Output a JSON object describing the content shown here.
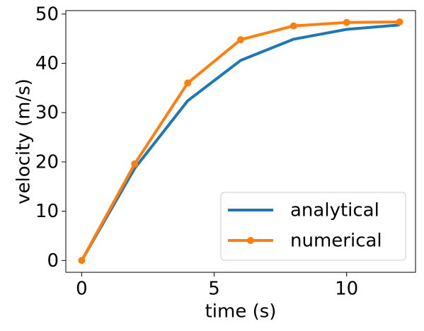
{
  "chart_data": {
    "type": "line",
    "x": [
      0,
      2,
      4,
      6,
      8,
      10,
      12
    ],
    "series": [
      {
        "name": "analytical",
        "color": "#1f77b4",
        "marker": false,
        "values": [
          0,
          18.7,
          32.4,
          40.6,
          44.9,
          46.9,
          47.8
        ]
      },
      {
        "name": "numerical",
        "color": "#ff7f0e",
        "marker": true,
        "values": [
          0,
          19.6,
          36.0,
          44.8,
          47.6,
          48.3,
          48.4
        ]
      }
    ],
    "x_label": "time (s)",
    "y_label": "velocity (m/s)",
    "xlim": [
      -0.6,
      12.6
    ],
    "ylim": [
      -2.4,
      50.7
    ],
    "xticks": [
      0,
      5,
      10
    ],
    "yticks": [
      0,
      10,
      20,
      30,
      40,
      50
    ],
    "grid": false,
    "legend": "lower right"
  }
}
